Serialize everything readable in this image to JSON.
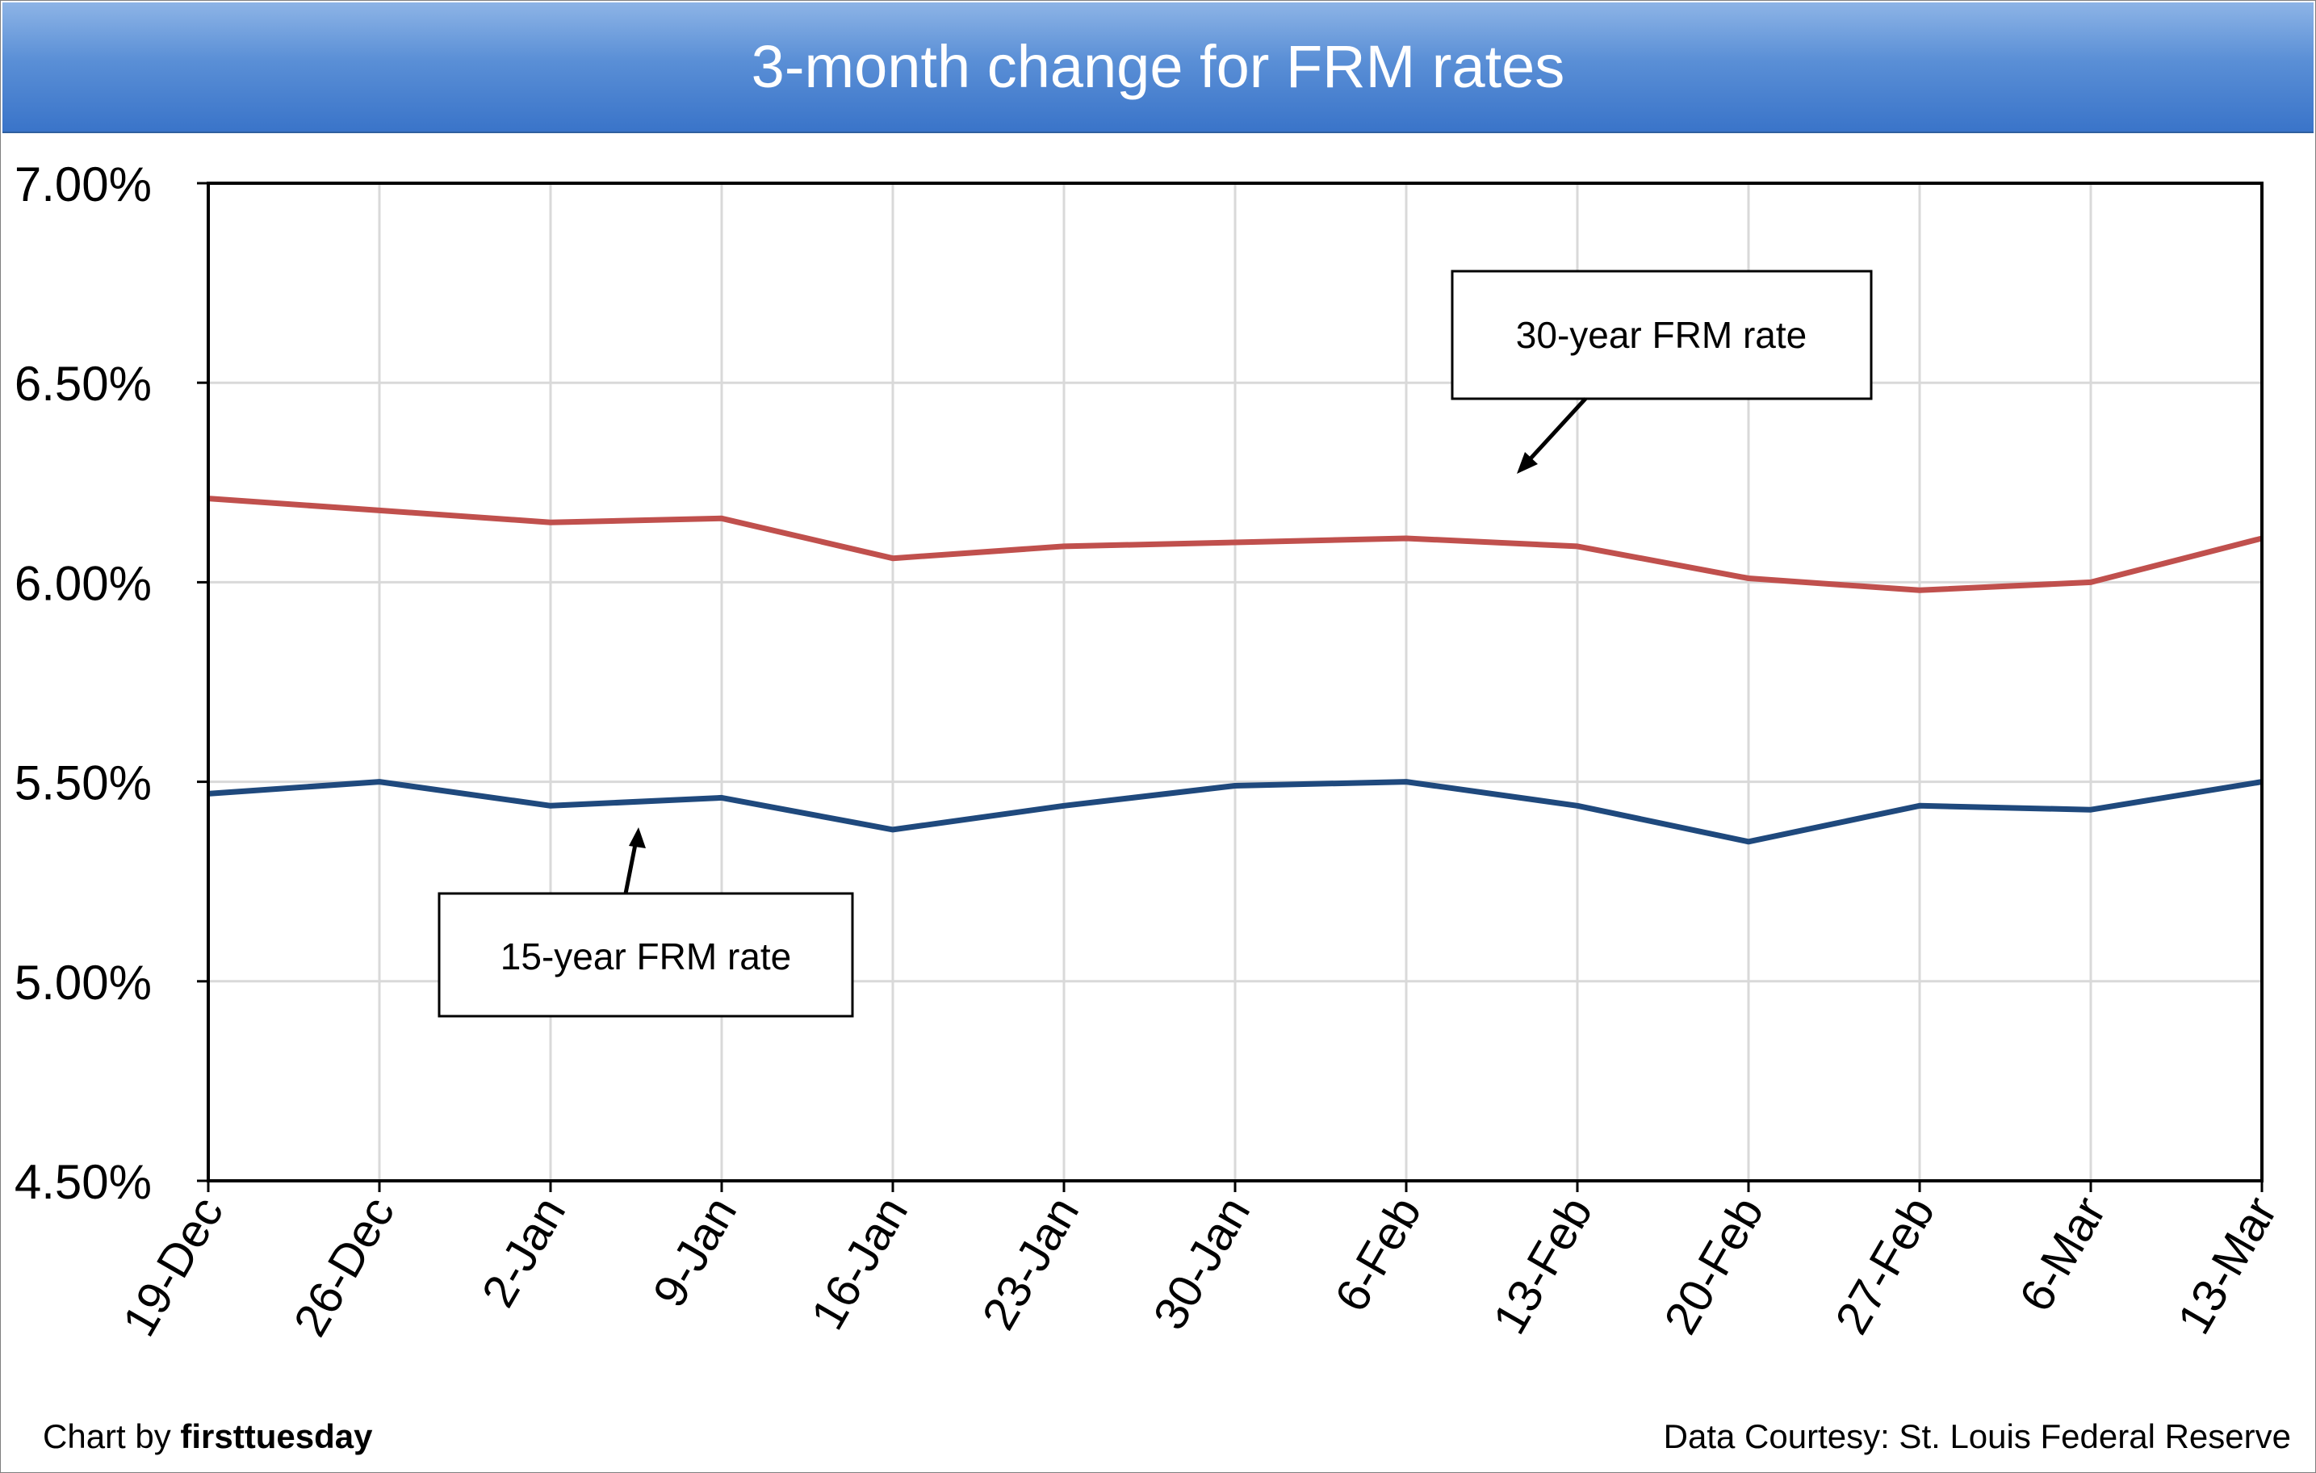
{
  "chart_data": {
    "type": "line",
    "title": "3-month change for FRM rates",
    "categories": [
      "19-Dec",
      "26-Dec",
      "2-Jan",
      "9-Jan",
      "16-Jan",
      "23-Jan",
      "30-Jan",
      "6-Feb",
      "13-Feb",
      "20-Feb",
      "27-Feb",
      "6-Mar",
      "13-Mar"
    ],
    "series": [
      {
        "name": "30-year FRM rate",
        "color": "#c0504d",
        "values": [
          6.21,
          6.18,
          6.15,
          6.16,
          6.06,
          6.09,
          6.1,
          6.11,
          6.09,
          6.01,
          5.98,
          6.0,
          6.11
        ]
      },
      {
        "name": "15-year FRM rate",
        "color": "#1f497d",
        "values": [
          5.47,
          5.5,
          5.44,
          5.46,
          5.38,
          5.44,
          5.49,
          5.5,
          5.44,
          5.35,
          5.44,
          5.43,
          5.5
        ]
      }
    ],
    "yticks": [
      "7.00%",
      "6.50%",
      "6.00%",
      "5.50%",
      "5.00%",
      "4.50%"
    ],
    "ylim": [
      4.5,
      7.0
    ],
    "grid": true,
    "annotations": {
      "thirty": "30-year FRM rate",
      "fifteen": "15-year FRM rate"
    }
  },
  "footer": {
    "credit_prefix": "Chart by ",
    "credit_brand": "firsttuesday",
    "source": "Data Courtesy: St. Louis Federal Reserve"
  },
  "colors": {
    "title_bar": "#4f81bd",
    "grid": "#d9d9d9"
  }
}
